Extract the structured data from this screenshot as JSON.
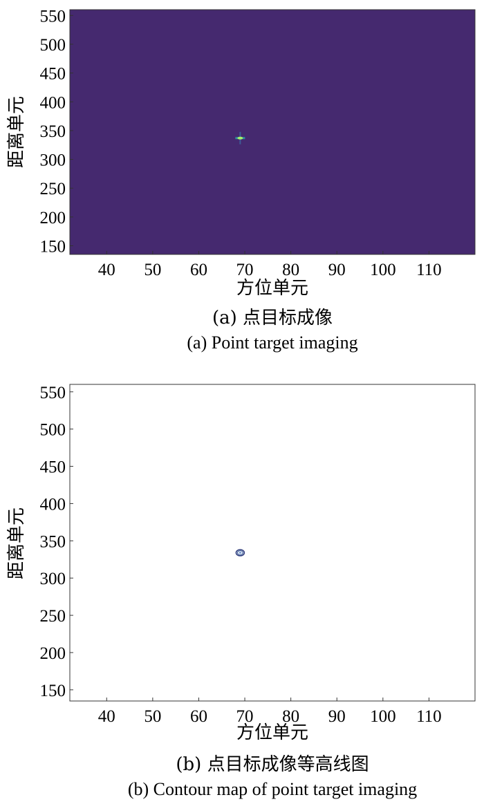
{
  "chart_data": [
    {
      "type": "heatmap",
      "xlabel": "方位单元",
      "ylabel": "距离单元",
      "xlim": [
        32,
        120
      ],
      "ylim": [
        135,
        560
      ],
      "xticks": [
        40,
        50,
        60,
        70,
        80,
        90,
        100,
        110
      ],
      "yticks": [
        150,
        200,
        250,
        300,
        350,
        400,
        450,
        500,
        550
      ],
      "background_color": "#45296f",
      "peak": {
        "x": 69,
        "y": 337
      },
      "caption_cn": "(a) 点目标成像",
      "caption_en": "(a) Point target imaging"
    },
    {
      "type": "contour",
      "xlabel": "方位单元",
      "ylabel": "距离单元",
      "xlim": [
        32,
        120
      ],
      "ylim": [
        135,
        560
      ],
      "xticks": [
        40,
        50,
        60,
        70,
        80,
        90,
        100,
        110
      ],
      "yticks": [
        150,
        200,
        250,
        300,
        350,
        400,
        450,
        500,
        550
      ],
      "contour_center": {
        "x": 69,
        "y": 334
      },
      "contour_color": "#2d3a7a",
      "caption_cn": "(b) 点目标成像等高线图",
      "caption_en": "(b) Contour map of point target imaging"
    }
  ]
}
